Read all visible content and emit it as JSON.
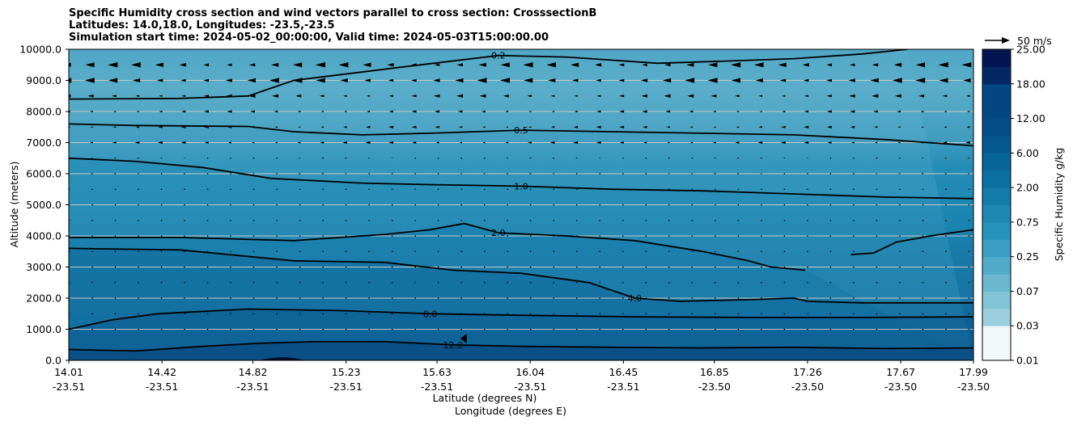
{
  "chart_data": {
    "type": "contour-cross-section",
    "title_lines": [
      "Specific Humidity cross section and wind vectors parallel to cross section: CrosssectionB",
      "Latitudes: 14.0,18.0, Longitudes: -23.5,-23.5",
      "Simulation start time: 2024-05-02_00:00:00, Valid time: 2024-05-03T15:00:00.00"
    ],
    "ylabel": "Altitude (meters)",
    "xlabel_lat": "Latitude (degrees N)",
    "xlabel_lon": "Longitude (degrees E)",
    "ylim": [
      0,
      10000
    ],
    "yticks": [
      0,
      1000,
      2000,
      3000,
      4000,
      5000,
      6000,
      7000,
      8000,
      9000,
      10000
    ],
    "ytick_labels": [
      "0.0",
      "1000.0",
      "2000.0",
      "3000.0",
      "4000.0",
      "5000.0",
      "6000.0",
      "7000.0",
      "8000.0",
      "9000.0",
      "10000.0"
    ],
    "xlim": [
      14.01,
      17.99
    ],
    "xticks_lat": [
      "14.01",
      "14.42",
      "14.82",
      "15.23",
      "15.63",
      "16.04",
      "16.45",
      "16.85",
      "17.26",
      "17.67",
      "17.99"
    ],
    "xticks_lon": [
      "-23.51",
      "-23.51",
      "-23.51",
      "-23.51",
      "-23.51",
      "-23.51",
      "-23.51",
      "-23.50",
      "-23.50",
      "-23.50",
      "-23.50"
    ],
    "xticks_pos": [
      14.01,
      14.42,
      14.82,
      15.23,
      15.63,
      16.04,
      16.45,
      16.85,
      17.26,
      17.67,
      17.99
    ],
    "colorbar": {
      "label": "Specific Humidity g/kg",
      "tick_labels": [
        "0.01",
        "0.03",
        "0.07",
        "0.25",
        "0.75",
        "2.00",
        "6.00",
        "12.00",
        "18.00",
        "25.00"
      ],
      "levels": 18
    },
    "quiver_key": {
      "label": "50 m/s"
    },
    "contours": [
      {
        "level": "0.2",
        "label": "0.2",
        "points": [
          [
            14.01,
            8400
          ],
          [
            14.5,
            8420
          ],
          [
            14.8,
            8500
          ],
          [
            14.9,
            8750
          ],
          [
            15.0,
            9000
          ],
          [
            15.5,
            9450
          ],
          [
            15.9,
            9800
          ],
          [
            16.2,
            9750
          ],
          [
            16.6,
            9550
          ],
          [
            16.9,
            9620
          ],
          [
            17.2,
            9700
          ],
          [
            17.5,
            9850
          ],
          [
            17.7,
            10000
          ]
        ]
      },
      {
        "level": "0.5",
        "label": "0.5",
        "points": [
          [
            14.01,
            7600
          ],
          [
            14.3,
            7550
          ],
          [
            14.8,
            7520
          ],
          [
            15.0,
            7350
          ],
          [
            15.3,
            7250
          ],
          [
            15.6,
            7300
          ],
          [
            16.0,
            7400
          ],
          [
            16.4,
            7350
          ],
          [
            16.8,
            7300
          ],
          [
            17.2,
            7250
          ],
          [
            17.6,
            7100
          ],
          [
            17.99,
            6900
          ]
        ]
      },
      {
        "level": "1.0",
        "label": "1.0",
        "points": [
          [
            14.01,
            6500
          ],
          [
            14.3,
            6400
          ],
          [
            14.6,
            6200
          ],
          [
            14.9,
            5850
          ],
          [
            15.3,
            5700
          ],
          [
            15.6,
            5650
          ],
          [
            16.0,
            5600
          ],
          [
            16.4,
            5500
          ],
          [
            16.8,
            5450
          ],
          [
            17.2,
            5350
          ],
          [
            17.6,
            5250
          ],
          [
            17.99,
            5200
          ]
        ]
      },
      {
        "level": "2.0",
        "label": "2.0",
        "points": [
          [
            14.01,
            3950
          ],
          [
            14.5,
            3950
          ],
          [
            15.0,
            3850
          ],
          [
            15.4,
            4050
          ],
          [
            15.6,
            4200
          ],
          [
            15.75,
            4400
          ],
          [
            15.9,
            4100
          ],
          [
            16.2,
            4000
          ],
          [
            16.5,
            3850
          ],
          [
            16.8,
            3500
          ],
          [
            17.0,
            3200
          ],
          [
            17.1,
            3000
          ],
          [
            17.25,
            2900
          ]
        ]
      },
      {
        "level": "2.0",
        "label": "",
        "points": [
          [
            17.45,
            3400
          ],
          [
            17.55,
            3450
          ],
          [
            17.65,
            3800
          ],
          [
            17.8,
            4000
          ],
          [
            17.99,
            4200
          ]
        ]
      },
      {
        "level": "4.0",
        "label": "4.0",
        "points": [
          [
            14.01,
            3600
          ],
          [
            14.5,
            3550
          ],
          [
            15.0,
            3200
          ],
          [
            15.4,
            3150
          ],
          [
            15.7,
            2900
          ],
          [
            16.0,
            2800
          ],
          [
            16.3,
            2500
          ],
          [
            16.5,
            2000
          ],
          [
            16.7,
            1900
          ],
          [
            17.0,
            1950
          ],
          [
            17.2,
            2000
          ],
          [
            17.26,
            1900
          ],
          [
            17.5,
            1850
          ],
          [
            17.99,
            1850
          ]
        ]
      },
      {
        "level": "8.0",
        "label": "8.0",
        "points": [
          [
            14.01,
            1000
          ],
          [
            14.2,
            1300
          ],
          [
            14.4,
            1500
          ],
          [
            14.8,
            1650
          ],
          [
            15.2,
            1600
          ],
          [
            15.6,
            1500
          ],
          [
            16.0,
            1450
          ],
          [
            16.5,
            1400
          ],
          [
            17.0,
            1380
          ],
          [
            17.5,
            1380
          ],
          [
            17.99,
            1400
          ]
        ]
      },
      {
        "level": "12.0",
        "label": "12.0",
        "points": [
          [
            14.01,
            350
          ],
          [
            14.3,
            300
          ],
          [
            14.6,
            450
          ],
          [
            14.85,
            550
          ],
          [
            15.1,
            600
          ],
          [
            15.4,
            600
          ],
          [
            15.7,
            500
          ],
          [
            16.0,
            450
          ],
          [
            16.4,
            420
          ],
          [
            16.8,
            400
          ],
          [
            17.2,
            420
          ],
          [
            17.6,
            380
          ],
          [
            17.99,
            400
          ]
        ]
      }
    ]
  }
}
